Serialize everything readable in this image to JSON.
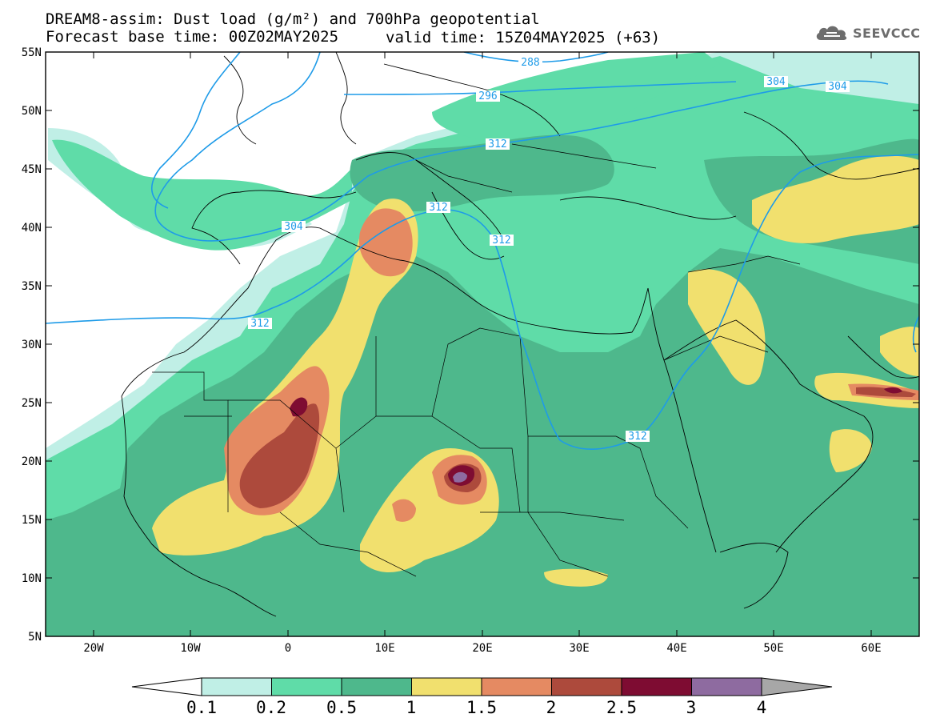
{
  "header": {
    "title_line1": "DREAM8-assim: Dust load (g/m²) and 700hPa geopotential",
    "title_line2": "Forecast base time: 00Z02MAY2025",
    "valid_time": "valid time: 15Z04MAY2025 (+63)",
    "logo_text": "SEEVCCC",
    "logo_icon": "cloud-icon"
  },
  "map": {
    "lat_labels": [
      "55N",
      "50N",
      "45N",
      "40N",
      "35N",
      "30N",
      "25N",
      "20N",
      "15N",
      "10N",
      "5N"
    ],
    "lon_labels": [
      "20W",
      "10W",
      "0",
      "10E",
      "20E",
      "30E",
      "40E",
      "50E",
      "60E"
    ],
    "contour_labels": [
      "288",
      "296",
      "304",
      "304",
      "304",
      "312",
      "312",
      "312",
      "312",
      "312"
    ],
    "contour_color": "#1e9be8"
  },
  "colorbar": {
    "labels": [
      "0.1",
      "0.2",
      "0.5",
      "1",
      "1.5",
      "2",
      "2.5",
      "3",
      "4"
    ],
    "colors": [
      "#c0efe6",
      "#5fdca8",
      "#4eb88c",
      "#f1e06e",
      "#e58a62",
      "#ad4a3c",
      "#7e0c32",
      "#8e6ba0",
      "#a7a7a7"
    ]
  }
}
